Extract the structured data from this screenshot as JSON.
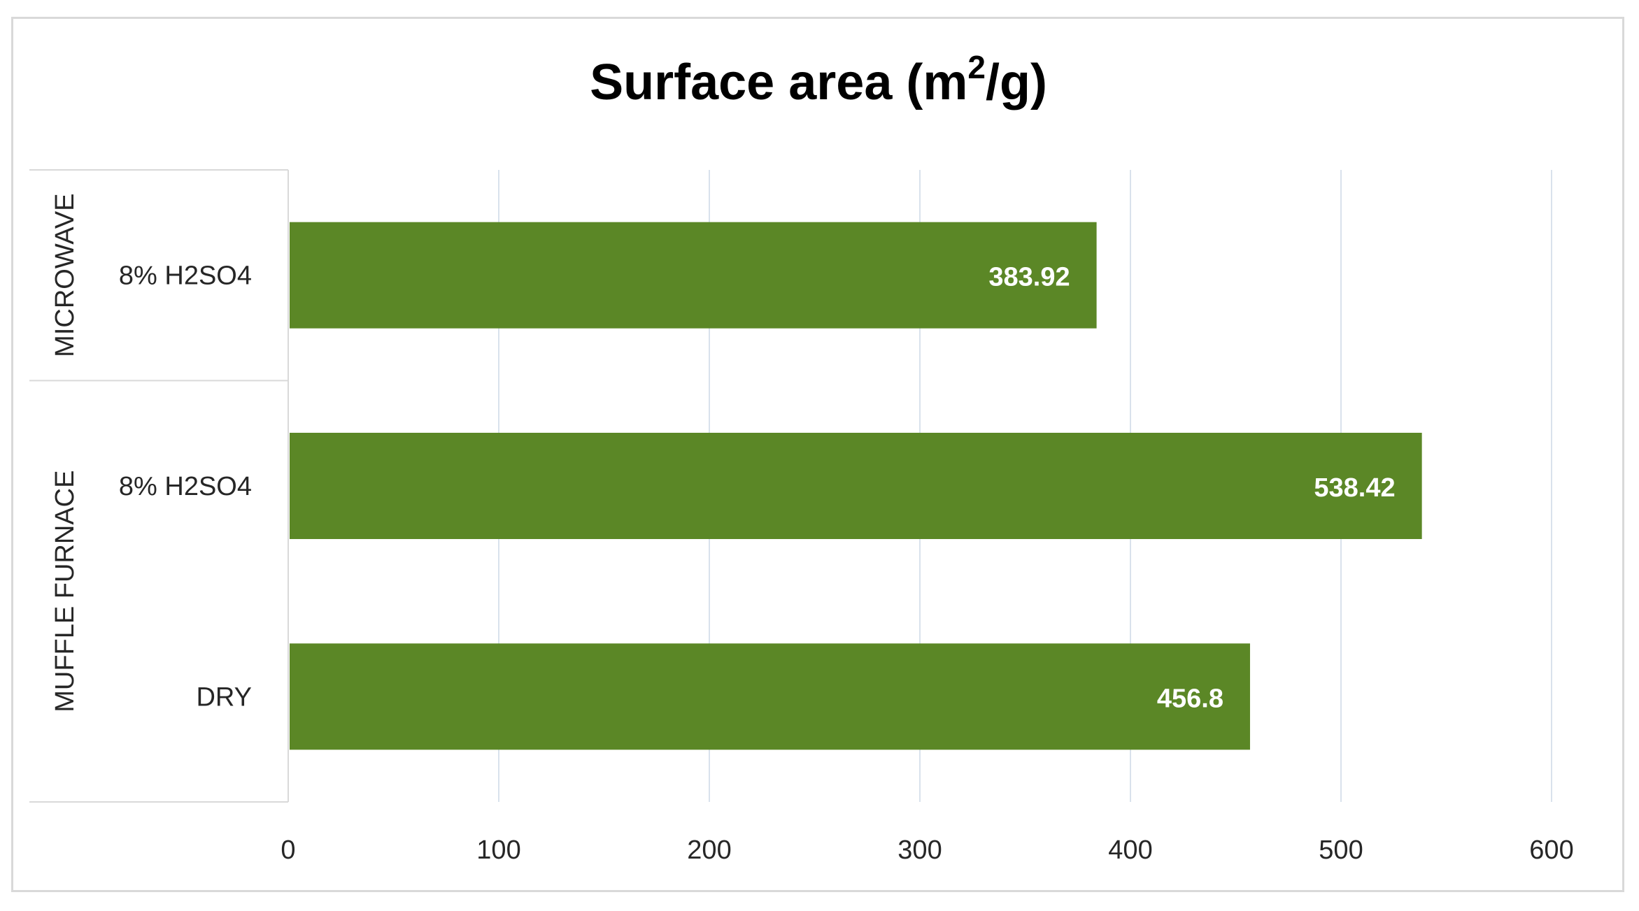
{
  "chart_data": {
    "type": "bar",
    "orientation": "horizontal",
    "title": "Surface area (m²/g)",
    "title_main": "Surface area (m",
    "title_sup": "2",
    "title_tail": "/g)",
    "groups": [
      {
        "label": "MICROWAVE",
        "categories": [
          "8% H2SO4"
        ]
      },
      {
        "label": "MUFFLE FURNACE",
        "categories": [
          "8% H2SO4",
          "DRY"
        ]
      }
    ],
    "categories": [
      "8% H2SO4",
      "8% H2SO4",
      "DRY"
    ],
    "values": [
      383.92,
      538.42,
      456.8
    ],
    "value_labels": [
      "383.92",
      "538.42",
      "456.8"
    ],
    "xlim": [
      0,
      600
    ],
    "xticks": [
      0,
      100,
      200,
      300,
      400,
      500,
      600
    ],
    "xtick_labels": [
      "0",
      "100",
      "200",
      "300",
      "400",
      "500",
      "600"
    ],
    "xlabel": "",
    "ylabel": "",
    "grid": "vertical",
    "legend": "none",
    "bar_color": "#5b8726",
    "grid_color": "#d9e2ec"
  }
}
